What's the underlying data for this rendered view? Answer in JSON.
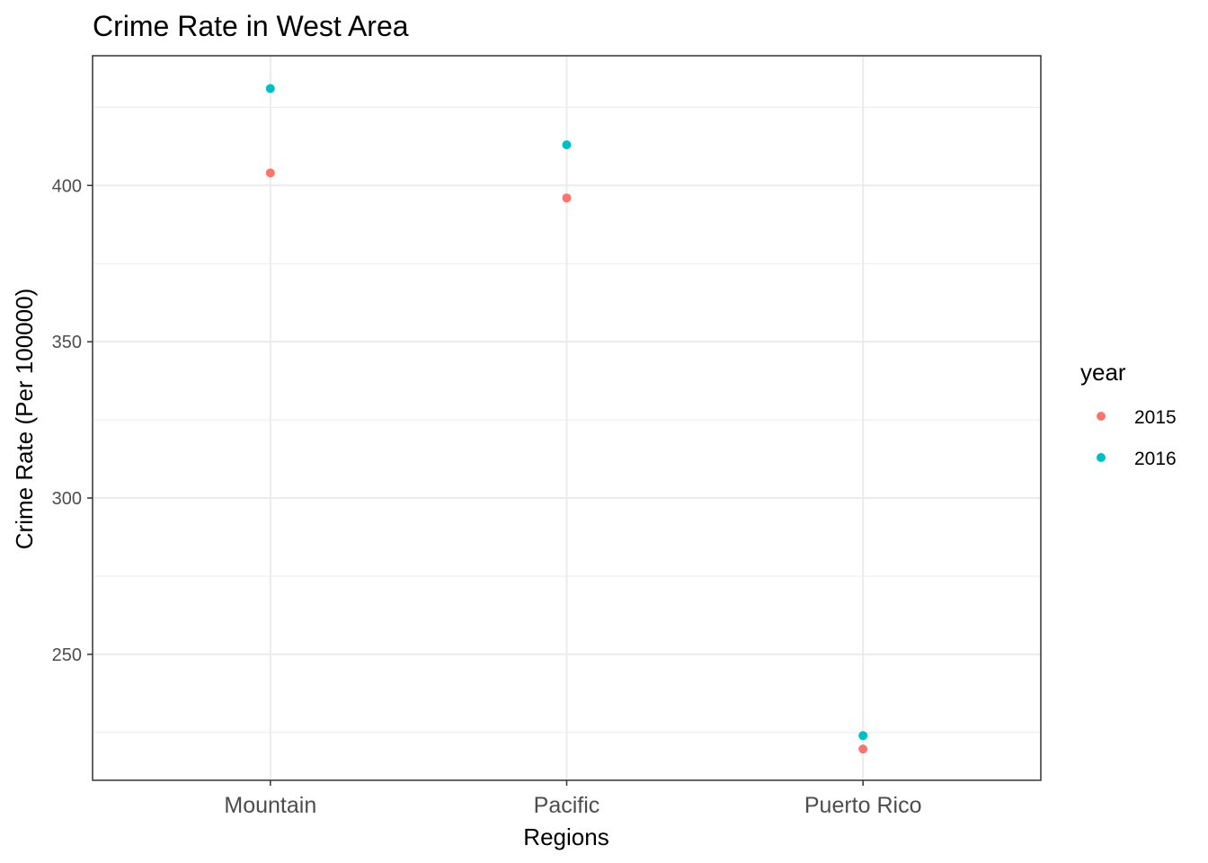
{
  "chart_data": {
    "type": "scatter",
    "title": "Crime Rate in West Area",
    "xlabel": "Regions",
    "ylabel": "Crime Rate (Per 100000)",
    "categories": [
      "Mountain",
      "Pacific",
      "Puerto Rico"
    ],
    "yticks": [
      250,
      300,
      350,
      400
    ],
    "ylim": [
      209.7,
      441.5
    ],
    "grid": true,
    "legend": {
      "title": "year",
      "position": "right"
    },
    "series": [
      {
        "name": "2015",
        "color": "#F8766D",
        "values": [
          404,
          396,
          219.7
        ]
      },
      {
        "name": "2016",
        "color": "#00BFC4",
        "values": [
          431,
          413,
          224
        ]
      }
    ]
  }
}
